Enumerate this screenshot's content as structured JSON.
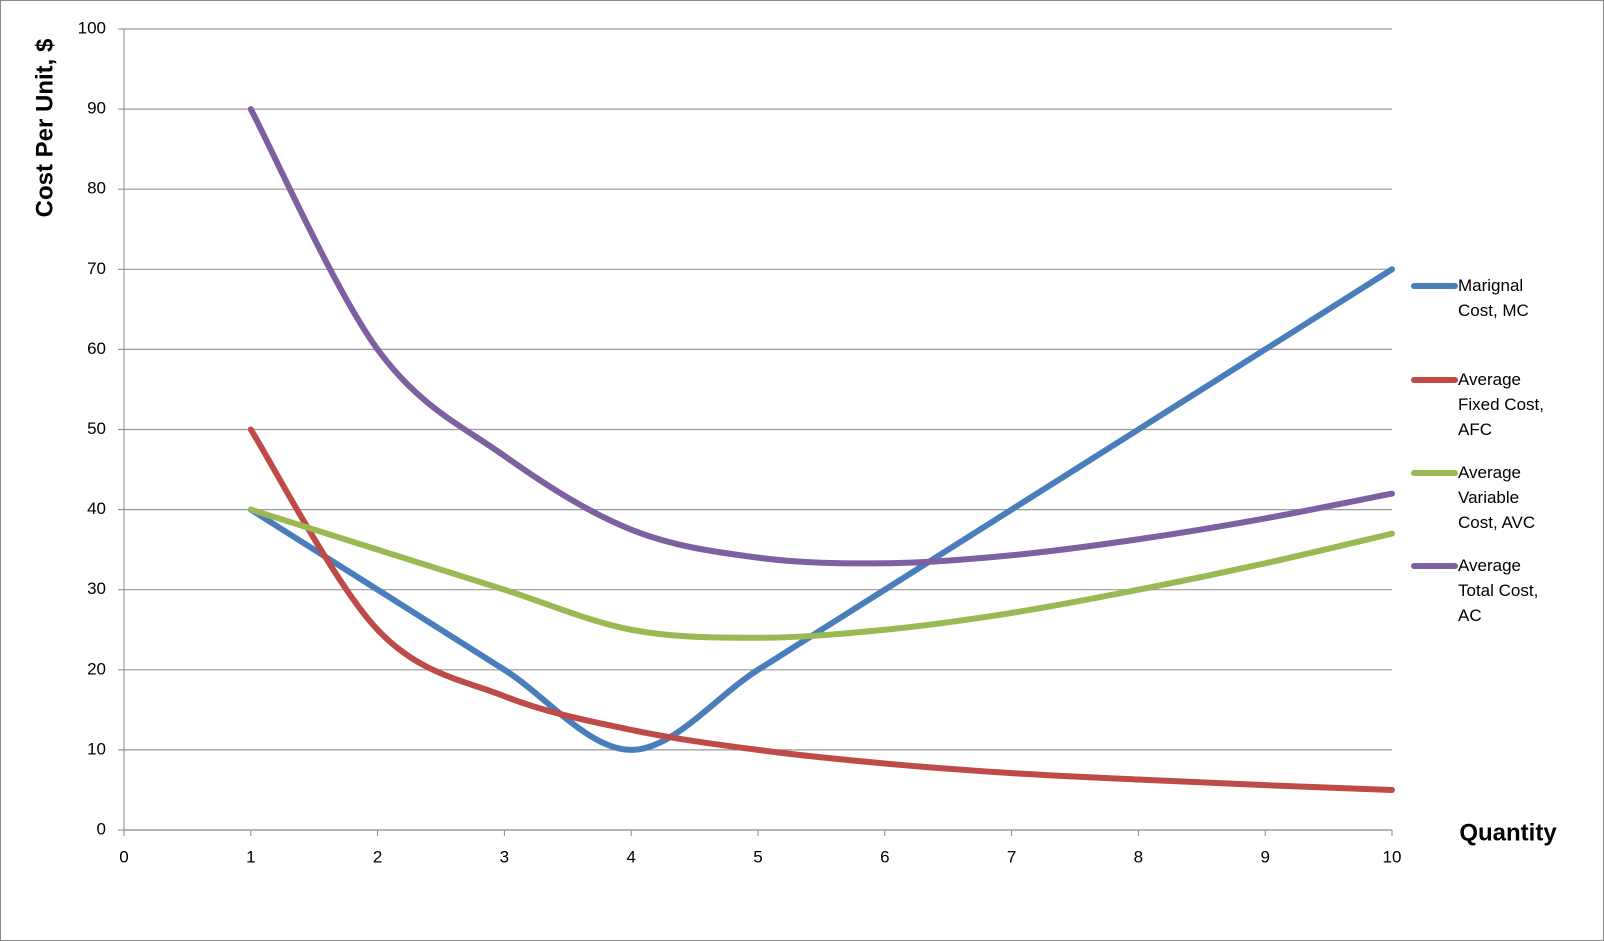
{
  "chart_data": {
    "type": "line",
    "y_label": "Cost Per Unit, $",
    "x_label": "Quantity",
    "x": [
      1,
      2,
      3,
      4,
      5,
      6,
      7,
      8,
      9,
      10
    ],
    "xlim": [
      0,
      10
    ],
    "xticks": [
      0,
      1,
      2,
      3,
      4,
      5,
      6,
      7,
      8,
      9,
      10
    ],
    "ylim": [
      0,
      100
    ],
    "yticks": [
      0,
      10,
      20,
      30,
      40,
      50,
      60,
      70,
      80,
      90,
      100
    ],
    "grid": true,
    "legend": "right",
    "series": [
      {
        "name": "Marignal Cost, MC",
        "color": "#4a7ebb",
        "values": [
          40,
          30,
          20,
          10,
          20,
          30,
          40,
          50,
          60,
          70
        ]
      },
      {
        "name": "Average Fixed Cost, AFC",
        "color": "#be4b48",
        "values": [
          50,
          25,
          16.7,
          12.5,
          10,
          8.3,
          7.1,
          6.3,
          5.6,
          5
        ]
      },
      {
        "name": "Average Variable Cost, AVC",
        "color": "#98b954",
        "values": [
          40,
          35,
          30,
          25,
          24,
          25,
          27.1,
          30,
          33.3,
          37
        ]
      },
      {
        "name": "Average Total Cost, AC",
        "color": "#7d60a0",
        "values": [
          90,
          60,
          46.7,
          37.5,
          34,
          33.3,
          34.3,
          36.3,
          38.9,
          42
        ]
      }
    ]
  }
}
